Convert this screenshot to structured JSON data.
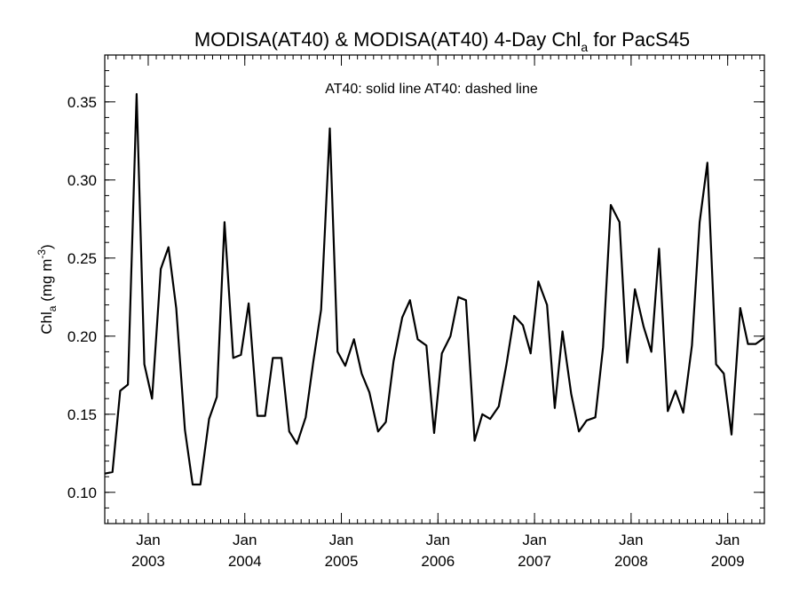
{
  "chart_data": {
    "type": "line",
    "title": {
      "main": "MODISA(AT40) & MODISA(AT40) 4-Day Chl",
      "sub": "a",
      "tail": " for PacS45"
    },
    "ylabel": {
      "main": "Chl",
      "sub": "a",
      "units": " (mg m",
      "sup": "-3",
      "close": ")"
    },
    "legend_text": "AT40: solid line   AT40: dashed line",
    "legend_placement": "top-center",
    "grid": false,
    "xlim": [
      2002.55,
      2009.38
    ],
    "ylim": [
      0.08,
      0.38
    ],
    "y_ticks": [
      0.1,
      0.15,
      0.2,
      0.25,
      0.3,
      0.35
    ],
    "y_tick_labels": [
      "0.10",
      "0.15",
      "0.20",
      "0.25",
      "0.30",
      "0.35"
    ],
    "x_ticks": [
      2003.0,
      2004.0,
      2005.0,
      2006.0,
      2007.0,
      2008.0,
      2009.0
    ],
    "x_tick_month_labels": [
      "Jan",
      "Jan",
      "Jan",
      "Jan",
      "Jan",
      "Jan",
      "Jan"
    ],
    "x_tick_year_labels": [
      "2003",
      "2004",
      "2005",
      "2006",
      "2007",
      "2008",
      "2009"
    ],
    "series": [
      {
        "style": "solid",
        "color": "#000000",
        "x": [
          2002.55,
          2002.63,
          2002.71,
          2002.79,
          2002.88,
          2002.96,
          2003.04,
          2003.13,
          2003.21,
          2003.29,
          2003.38,
          2003.46,
          2003.54,
          2003.63,
          2003.71,
          2003.79,
          2003.88,
          2003.96,
          2004.04,
          2004.13,
          2004.21,
          2004.29,
          2004.38,
          2004.46,
          2004.54,
          2004.63,
          2004.71,
          2004.79,
          2004.88,
          2004.96,
          2005.04,
          2005.13,
          2005.21,
          2005.29,
          2005.38,
          2005.46,
          2005.54,
          2005.63,
          2005.71,
          2005.79,
          2005.88,
          2005.96,
          2006.04,
          2006.13,
          2006.21,
          2006.29,
          2006.38,
          2006.46,
          2006.54,
          2006.63,
          2006.71,
          2006.79,
          2006.88,
          2006.96,
          2007.04,
          2007.13,
          2007.21,
          2007.29,
          2007.38,
          2007.46,
          2007.54,
          2007.63,
          2007.71,
          2007.79,
          2007.88,
          2007.96,
          2008.04,
          2008.13,
          2008.21,
          2008.29,
          2008.38,
          2008.46,
          2008.54,
          2008.63,
          2008.71,
          2008.79,
          2008.88,
          2008.96,
          2009.04,
          2009.13,
          2009.21,
          2009.29,
          2009.38
        ],
        "y": [
          0.112,
          0.113,
          0.165,
          0.169,
          0.355,
          0.182,
          0.16,
          0.243,
          0.257,
          0.218,
          0.14,
          0.105,
          0.105,
          0.147,
          0.161,
          0.273,
          0.186,
          0.188,
          0.221,
          0.149,
          0.149,
          0.186,
          0.186,
          0.139,
          0.131,
          0.148,
          0.184,
          0.217,
          0.333,
          0.19,
          0.181,
          0.198,
          0.176,
          0.164,
          0.139,
          0.145,
          0.184,
          0.212,
          0.223,
          0.198,
          0.194,
          0.138,
          0.189,
          0.2,
          0.225,
          0.223,
          0.133,
          0.15,
          0.147,
          0.155,
          0.182,
          0.213,
          0.207,
          0.189,
          0.235,
          0.22,
          0.154,
          0.203,
          0.163,
          0.139,
          0.146,
          0.148,
          0.193,
          0.284,
          0.273,
          0.183,
          0.23,
          0.206,
          0.19,
          0.256,
          0.152,
          0.165,
          0.151,
          0.194,
          0.273,
          0.311,
          0.182,
          0.176,
          0.137,
          0.218,
          0.195,
          0.195,
          0.199
        ]
      }
    ]
  }
}
